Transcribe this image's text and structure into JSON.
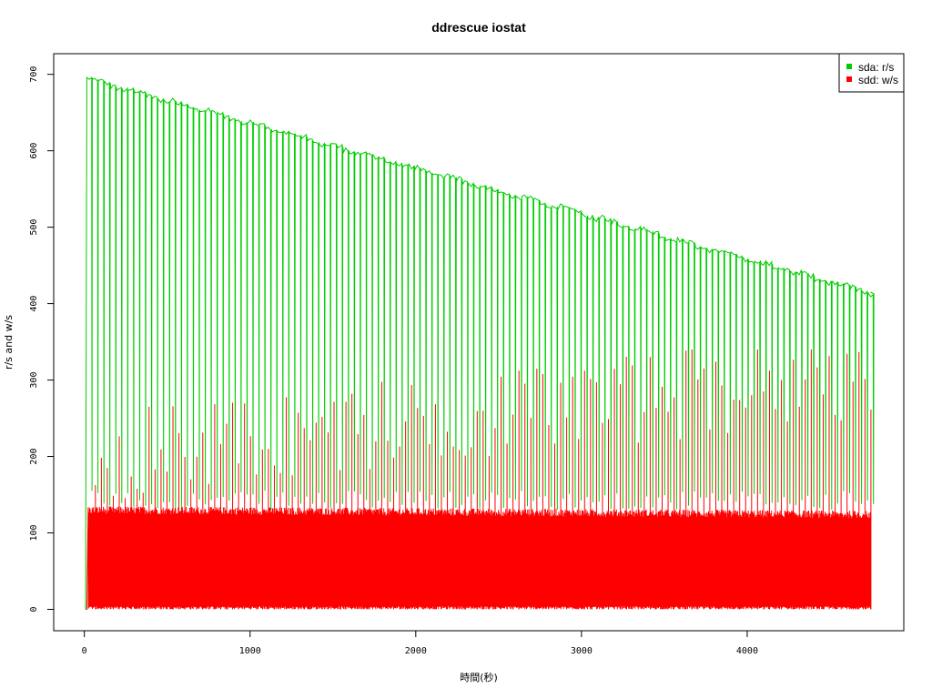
{
  "chart_data": {
    "type": "line",
    "title": "ddrescue iostat",
    "xlabel": "時間(秒)",
    "ylabel": "r/s and w/s",
    "xlim": [
      -185,
      4945
    ],
    "ylim": [
      -28,
      727
    ],
    "xticks": [
      0,
      1000,
      2000,
      3000,
      4000
    ],
    "yticks": [
      0,
      100,
      200,
      300,
      400,
      500,
      600,
      700
    ],
    "x_start": 15,
    "x_end": 4745,
    "legend_position": "top-right",
    "series": [
      {
        "name": "sda: r/s",
        "color": "#00cd00",
        "cycle_seconds": 36,
        "high_start": 695,
        "high_end": 415,
        "low": 130,
        "description_envelope": [
          [
            15,
            695
          ],
          [
            1000,
            663
          ],
          [
            2000,
            605
          ],
          [
            3000,
            545
          ],
          [
            4000,
            470
          ],
          [
            4745,
            415
          ]
        ]
      },
      {
        "name": "sdd: w/s",
        "color": "#ff0000",
        "cycle_seconds": 36,
        "plateau": 130,
        "low": 0,
        "spike_max": 340
      }
    ]
  }
}
